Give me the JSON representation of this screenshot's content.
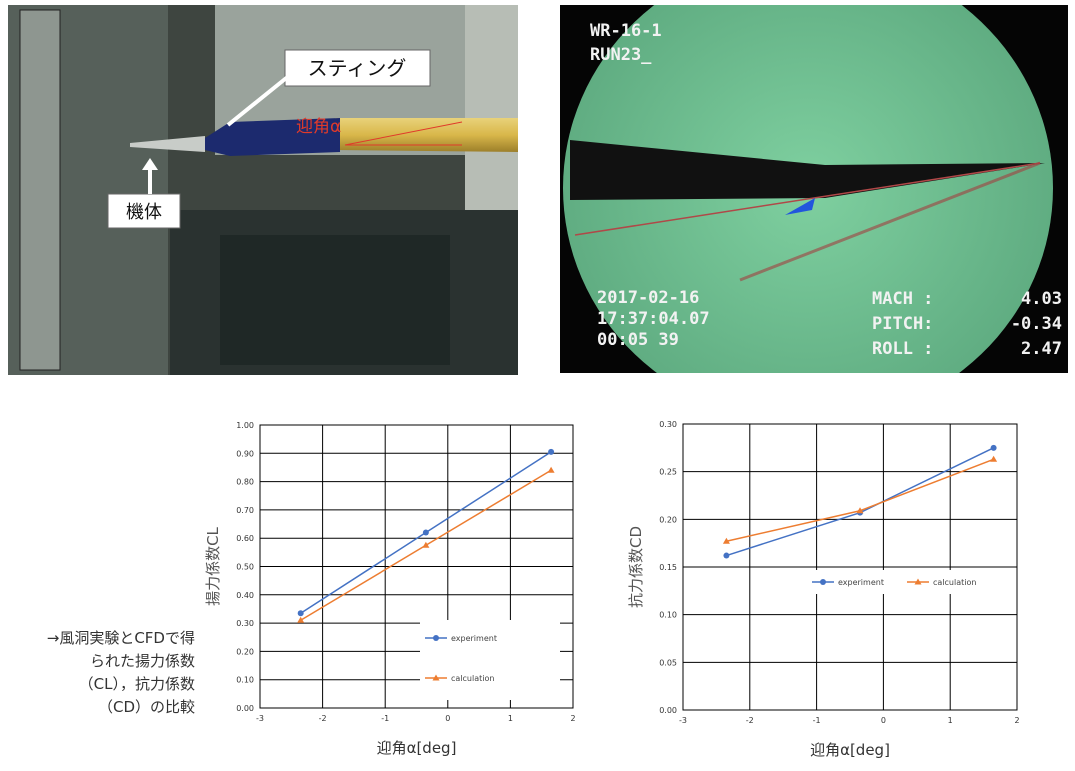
{
  "photos": {
    "left": {
      "labels": [
        "スティング",
        "機体",
        "迎角α"
      ]
    },
    "right": {
      "overlay": [
        "WR-16-1",
        "RUN23_",
        "2017-02-16",
        "17:37:04.07",
        "00:05 39",
        "MACH :",
        "4.03",
        "PITCH:",
        "-0.34",
        "ROLL :",
        "2.47"
      ]
    }
  },
  "caption": [
    "→風洞実験とCFDで得",
    "られた揚力係数",
    "（CL），抗力係数",
    "（CD）の比較"
  ],
  "chart_data": [
    {
      "type": "line",
      "y_label": "揚力係数CL",
      "x_label": "迎角α[deg]",
      "x": [
        -2.35,
        -0.35,
        1.65
      ],
      "series": [
        {
          "name": "experiment",
          "color": "#4472c4",
          "marker": "circle",
          "values": [
            0.335,
            0.62,
            0.905
          ]
        },
        {
          "name": "calculation",
          "color": "#ed7d31",
          "marker": "triangle",
          "values": [
            0.31,
            0.575,
            0.84
          ]
        }
      ],
      "xlim": [
        -3,
        2
      ],
      "xticks": [
        -3,
        -2,
        -1,
        0,
        1,
        2
      ],
      "ylim": [
        0,
        1
      ],
      "yticks": [
        {
          "value": 0,
          "label": "0.00"
        },
        {
          "value": 0.1,
          "label": "0.10"
        },
        {
          "value": 0.2,
          "label": "0.20"
        },
        {
          "value": 0.3,
          "label": "0.30"
        },
        {
          "value": 0.4,
          "label": "0.40"
        },
        {
          "value": 0.5,
          "label": "0.50"
        },
        {
          "value": 0.6,
          "label": "0.60"
        },
        {
          "value": 0.7,
          "label": "0.70"
        },
        {
          "value": 0.8,
          "label": "0.80"
        },
        {
          "value": 0.9,
          "label": "0.90"
        },
        {
          "value": 1,
          "label": "1.00"
        }
      ],
      "grid": true,
      "legend": "lower right"
    },
    {
      "type": "line",
      "y_label": "抗力係数CD",
      "x_label": "迎角α[deg]",
      "x": [
        -2.35,
        -0.35,
        1.65
      ],
      "series": [
        {
          "name": "experiment",
          "color": "#4472c4",
          "marker": "circle",
          "values": [
            0.162,
            0.207,
            0.275
          ]
        },
        {
          "name": "calculation",
          "color": "#ed7d31",
          "marker": "triangle",
          "values": [
            0.177,
            0.209,
            0.263
          ]
        }
      ],
      "xlim": [
        -3,
        2
      ],
      "xticks": [
        -3,
        -2,
        -1,
        0,
        1,
        2
      ],
      "ylim": [
        0,
        0.3
      ],
      "yticks": [
        {
          "value": 0,
          "label": "0.00"
        },
        {
          "value": 0.05,
          "label": "0.05"
        },
        {
          "value": 0.1,
          "label": "0.10"
        },
        {
          "value": 0.15,
          "label": "0.15"
        },
        {
          "value": 0.2,
          "label": "0.20"
        },
        {
          "value": 0.25,
          "label": "0.25"
        },
        {
          "value": 0.3,
          "label": "0.30"
        }
      ],
      "grid": true,
      "legend": "right"
    }
  ]
}
